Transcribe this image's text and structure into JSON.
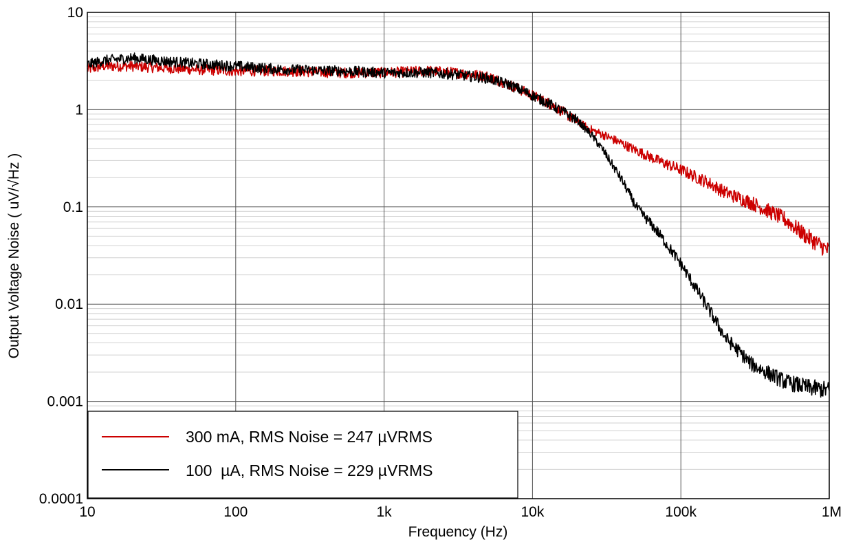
{
  "chart_data": {
    "type": "line",
    "title": "",
    "xlabel": "Frequency (Hz)",
    "ylabel": "Output Voltage Noise ( uV/√Hz )",
    "xscale": "log",
    "yscale": "log",
    "xlim": [
      10,
      1000000
    ],
    "ylim": [
      0.0001,
      10
    ],
    "grid": true,
    "x_ticks": [
      {
        "value": 10,
        "label": "10"
      },
      {
        "value": 100,
        "label": "100"
      },
      {
        "value": 1000,
        "label": "1k"
      },
      {
        "value": 10000,
        "label": "10k"
      },
      {
        "value": 100000,
        "label": "100k"
      },
      {
        "value": 1000000,
        "label": "1M"
      }
    ],
    "y_ticks": [
      {
        "value": 10,
        "label": "10"
      },
      {
        "value": 1,
        "label": "1"
      },
      {
        "value": 0.1,
        "label": "0.1"
      },
      {
        "value": 0.01,
        "label": "0.01"
      },
      {
        "value": 0.001,
        "label": "0.001"
      },
      {
        "value": 0.0001,
        "label": "0.0001"
      }
    ],
    "legend_position": "bottom-left",
    "series": [
      {
        "name": "300 mA, RMS Noise = 247 µVRMS",
        "color": "#cc0000",
        "x": [
          10,
          13,
          20,
          30,
          50,
          100,
          200,
          500,
          1000,
          2000,
          3000,
          5000,
          7000,
          10000,
          13000,
          16000,
          20000,
          25000,
          30000,
          40000,
          50000,
          70000,
          100000,
          150000,
          200000,
          300000,
          500000,
          700000,
          1000000
        ],
        "y": [
          2.6,
          2.8,
          2.8,
          2.7,
          2.6,
          2.5,
          2.5,
          2.4,
          2.4,
          2.5,
          2.4,
          2.2,
          1.8,
          1.4,
          1.15,
          0.95,
          0.75,
          0.62,
          0.55,
          0.45,
          0.38,
          0.3,
          0.24,
          0.18,
          0.14,
          0.11,
          0.075,
          0.05,
          0.035
        ]
      },
      {
        "name": "100  µA, RMS Noise = 229 µVRMS",
        "color": "#000000",
        "x": [
          10,
          13,
          20,
          30,
          50,
          100,
          200,
          500,
          1000,
          2000,
          3000,
          5000,
          7000,
          10000,
          13000,
          16000,
          20000,
          25000,
          30000,
          40000,
          50000,
          70000,
          100000,
          150000,
          200000,
          300000,
          500000,
          700000,
          1000000
        ],
        "y": [
          2.9,
          3.2,
          3.4,
          3.2,
          3.0,
          2.8,
          2.6,
          2.5,
          2.4,
          2.4,
          2.3,
          2.1,
          1.8,
          1.4,
          1.15,
          0.95,
          0.78,
          0.55,
          0.38,
          0.19,
          0.1,
          0.055,
          0.026,
          0.0095,
          0.0045,
          0.0024,
          0.0016,
          0.0014,
          0.0013
        ]
      }
    ]
  }
}
